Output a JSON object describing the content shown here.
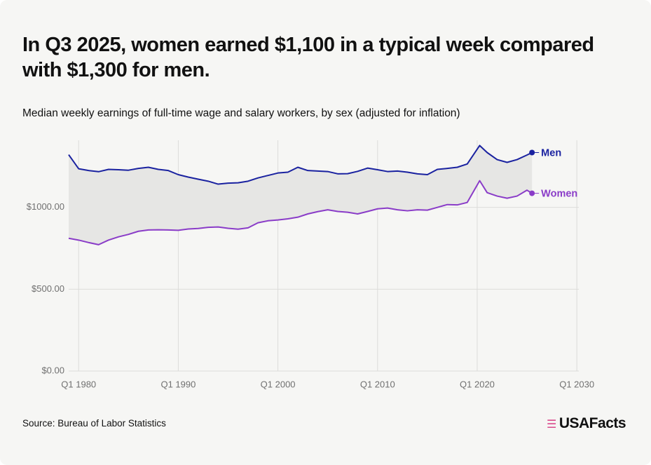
{
  "chart_data": {
    "type": "line",
    "title": "In Q3 2025, women earned $1,100 in a typical week compared with $1,300 for men.",
    "subtitle": "Median weekly earnings of full-time wage and salary workers, by sex (adjusted for inflation)",
    "source": "Source: Bureau of Labor Statistics",
    "brand": "USAFacts",
    "x": [
      1979,
      1980,
      1981,
      1982,
      1983,
      1984,
      1985,
      1986,
      1987,
      1988,
      1989,
      1990,
      1991,
      1992,
      1993,
      1994,
      1995,
      1996,
      1997,
      1998,
      1999,
      2000,
      2001,
      2002,
      2003,
      2004,
      2005,
      2006,
      2007,
      2008,
      2009,
      2010,
      2011,
      2012,
      2013,
      2014,
      2015,
      2016,
      2017,
      2018,
      2019,
      2020.25,
      2021,
      2022,
      2023,
      2024,
      2025,
      2025.5
    ],
    "series": [
      {
        "name": "Men",
        "color": "#1a22a0",
        "values": [
          1322,
          1236,
          1225,
          1218,
          1232,
          1230,
          1227,
          1238,
          1245,
          1232,
          1225,
          1200,
          1185,
          1172,
          1160,
          1142,
          1148,
          1150,
          1160,
          1180,
          1195,
          1210,
          1215,
          1245,
          1225,
          1222,
          1219,
          1205,
          1206,
          1220,
          1240,
          1230,
          1219,
          1222,
          1215,
          1205,
          1200,
          1232,
          1238,
          1245,
          1265,
          1378,
          1335,
          1292,
          1275,
          1292,
          1320,
          1335
        ]
      },
      {
        "name": "Women",
        "color": "#8a3cc8",
        "values": [
          811,
          800,
          785,
          772,
          800,
          820,
          835,
          854,
          862,
          863,
          862,
          860,
          868,
          871,
          878,
          880,
          872,
          867,
          875,
          906,
          918,
          923,
          930,
          940,
          960,
          974,
          985,
          975,
          970,
          960,
          975,
          991,
          996,
          985,
          979,
          985,
          983,
          1000,
          1017,
          1015,
          1030,
          1163,
          1090,
          1069,
          1056,
          1069,
          1105,
          1086
        ]
      }
    ],
    "fill_between_color": "#e6e6e4",
    "xlim": [
      1979,
      2030.2
    ],
    "xticks": [
      {
        "value": 1980,
        "label": "Q1 1980"
      },
      {
        "value": 1990,
        "label": "Q1 1990"
      },
      {
        "value": 2000,
        "label": "Q1 2000"
      },
      {
        "value": 2010,
        "label": "Q1 2010"
      },
      {
        "value": 2020,
        "label": "Q1 2020"
      },
      {
        "value": 2030,
        "label": "Q1 2030"
      }
    ],
    "ylim": [
      0,
      1410
    ],
    "yticks": [
      {
        "value": 0,
        "label": "$0.00"
      },
      {
        "value": 500,
        "label": "$500.00"
      },
      {
        "value": 1000,
        "label": "$1000.00"
      }
    ],
    "grid": true
  }
}
